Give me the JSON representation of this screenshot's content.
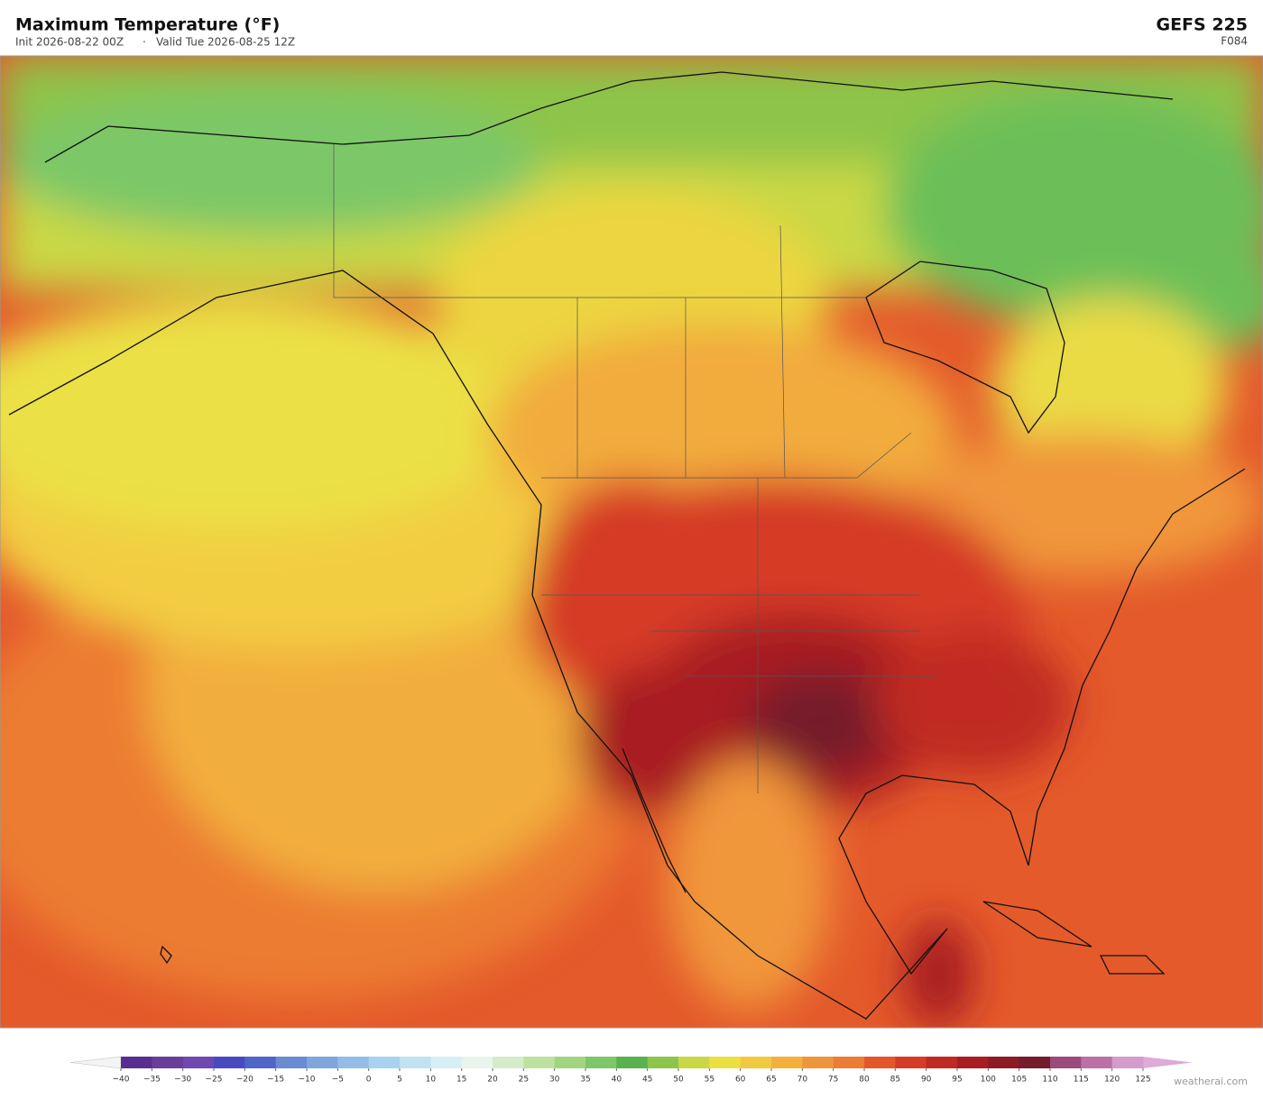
{
  "header": {
    "title": "Maximum Temperature  (°F)",
    "init": "Init 2026-08-22 00Z",
    "separator": "·",
    "valid": "Valid Tue 2026-08-25 12Z",
    "model": "GEFS  225",
    "forecast_hour": "F084"
  },
  "colorbar": {
    "stops": [
      {
        "value": -40,
        "label": "−40"
      },
      {
        "value": -35,
        "label": "−35"
      },
      {
        "value": -30,
        "label": "−30"
      },
      {
        "value": -25,
        "label": "−25"
      },
      {
        "value": -20,
        "label": "−20"
      },
      {
        "value": -15,
        "label": "−15"
      },
      {
        "value": -10,
        "label": "−10"
      },
      {
        "value": -5,
        "label": "−5"
      },
      0,
      5,
      10,
      15,
      20,
      25,
      30,
      35,
      40,
      45,
      50,
      55,
      60,
      65,
      70,
      75,
      80,
      85,
      90,
      95,
      100,
      105,
      110,
      115,
      120,
      125
    ],
    "colors": [
      "#5a2d91",
      "#6a3d9a",
      "#6f48b0",
      "#4a4ac0",
      "#5065c8",
      "#6a8ad4",
      "#7fa6dc",
      "#93bde6",
      "#a8d2ee",
      "#c2e2f2",
      "#d8eef5",
      "#e8f4ec",
      "#d4ecc8",
      "#bde2a0",
      "#9fd67f",
      "#7cc768",
      "#58b24f",
      "#8dc44a",
      "#c9d845",
      "#ece040",
      "#f2c93e",
      "#f3b13c",
      "#f0963a",
      "#eb7c33",
      "#e5572a",
      "#d63b25",
      "#c02a22",
      "#a81e22",
      "#8e1a24",
      "#741c2c",
      "#9c4a7c",
      "#bb70a8",
      "#d49ccc"
    ],
    "under_color": "#f4f4f4",
    "over_color": "#deaad8"
  },
  "attribution": "weatherai.com"
}
